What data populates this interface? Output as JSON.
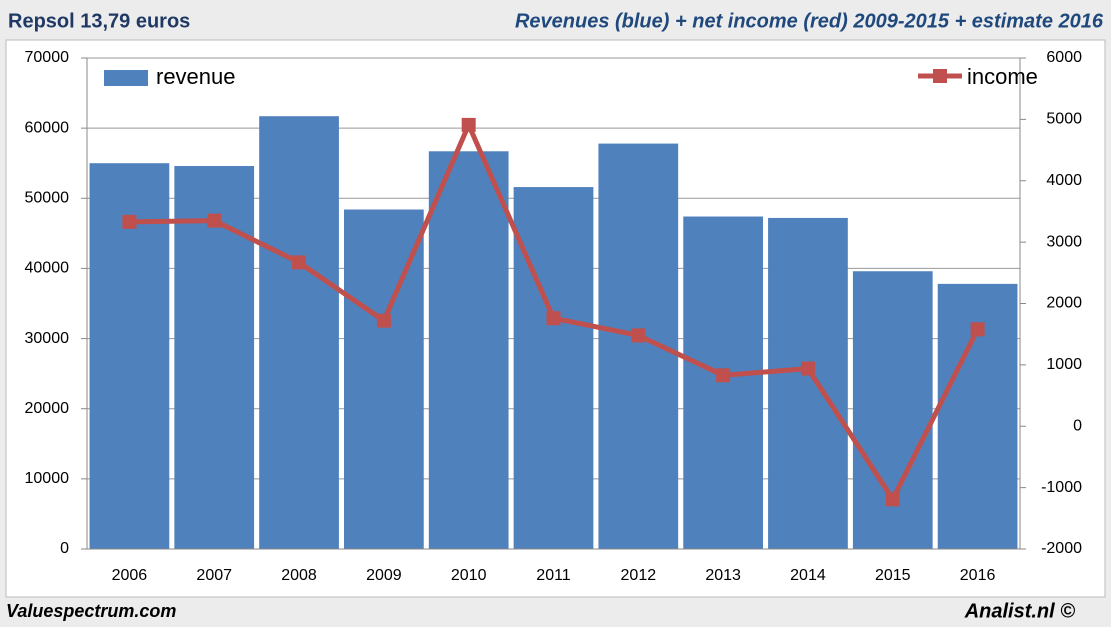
{
  "chart_data": {
    "type": "bar_line",
    "title": "Repsol 13,79 euros",
    "subtitle": "Revenues (blue) + net income (red) 2009-2015 + estimate 2016",
    "footer_left": "Valuespectrum.com",
    "footer_right": "Analist.nl ©",
    "categories": [
      "2006",
      "2007",
      "2008",
      "2009",
      "2010",
      "2011",
      "2012",
      "2013",
      "2014",
      "2015",
      "2016"
    ],
    "series": [
      {
        "name": "revenue",
        "color": "#4f81bd",
        "type": "bar",
        "values": [
          55000,
          54600,
          61700,
          48400,
          56700,
          51600,
          57800,
          47400,
          47200,
          39600,
          37800
        ]
      },
      {
        "name": "income",
        "color": "#c0504d",
        "type": "line",
        "axis": "y2",
        "values": [
          3330,
          3350,
          2670,
          1720,
          4910,
          1760,
          1480,
          830,
          940,
          -1190,
          1580
        ]
      }
    ],
    "ylim": [
      0,
      70000
    ],
    "yticks": [
      0,
      10000,
      20000,
      30000,
      40000,
      50000,
      60000,
      70000
    ],
    "y2lim": [
      -2000,
      6000
    ],
    "y2ticks": [
      -2000,
      -1000,
      0,
      1000,
      2000,
      3000,
      4000,
      5000,
      6000
    ],
    "grid": true
  }
}
